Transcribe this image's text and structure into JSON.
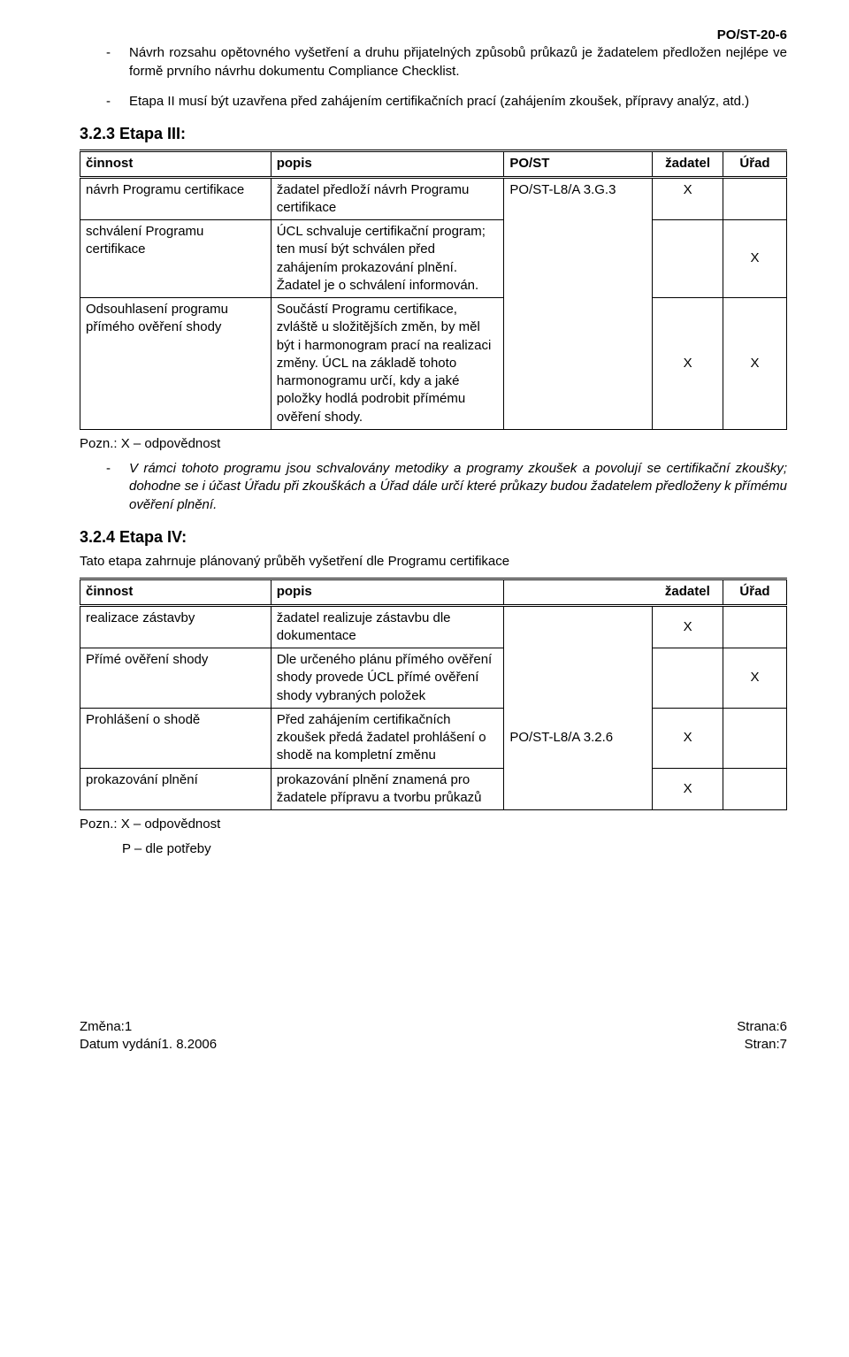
{
  "header": {
    "code": "PO/ST-20-6"
  },
  "bullets_top": [
    "Návrh rozsahu opětovného vyšetření a druhu přijatelných způsobů průkazů je žadatelem předložen nejlépe ve formě prvního návrhu dokumentu Compliance Checklist.",
    "Etapa II musí být uzavřena před zahájením certifikačních prací (zahájením zkoušek, přípravy analýz, atd.)"
  ],
  "section3": {
    "heading": "3.2.3 Etapa III:",
    "table": {
      "headers": {
        "cinnost": "činnost",
        "popis": "popis",
        "post": "PO/ST",
        "zadatel": "žadatel",
        "urad": "Úřad"
      },
      "rows": [
        {
          "cinnost": "návrh Programu certifikace",
          "popis": "žadatel předloží návrh Programu certifikace",
          "post": "PO/ST-L8/A 3.G.3",
          "zadatel": "X",
          "urad": ""
        },
        {
          "cinnost": "schválení Programu certifikace",
          "popis": "ÚCL schvaluje certifikační program; ten musí být schválen před zahájením prokazování plnění. Žadatel je o schválení informován.",
          "post": "",
          "zadatel": "",
          "urad": "X"
        },
        {
          "cinnost": "Odsouhlasení programu přímého ověření shody",
          "popis": "Součástí Programu certifikace, zvláště u složitějších změn, by měl být i harmonogram prací na realizaci změny. ÚCL na základě tohoto harmonogramu určí, kdy a jaké položky hodlá podrobit přímému ověření shody.",
          "post": "",
          "zadatel": "X",
          "urad": "X"
        }
      ]
    },
    "note": "Pozn.: X – odpovědnost",
    "bullet_after": "V rámci tohoto programu jsou schvalovány metodiky a programy zkoušek a povolují se certifikační zkoušky; dohodne se i účast Úřadu při zkouškách a Úřad dále určí které průkazy budou žadatelem předloženy k přímému ověření plnění."
  },
  "section4": {
    "heading": "3.2.4 Etapa IV:",
    "sub": "Tato etapa zahrnuje plánovaný průběh vyšetření dle Programu certifikace",
    "table": {
      "headers": {
        "cinnost": "činnost",
        "popis": "popis",
        "zadatel": "žadatel",
        "urad": "Úřad"
      },
      "rows": [
        {
          "cinnost": "realizace zástavby",
          "popis": "žadatel realizuje zástavbu dle dokumentace",
          "post": "",
          "zadatel": "X",
          "urad": ""
        },
        {
          "cinnost": "Přímé ověření shody",
          "popis": "Dle určeného plánu přímého ověření shody provede ÚCL přímé ověření shody vybraných položek",
          "post": "",
          "zadatel": "",
          "urad": "X"
        },
        {
          "cinnost": "Prohlášení o shodě",
          "popis": "Před zahájením certifikačních zkoušek předá žadatel prohlášení o shodě na kompletní změnu",
          "post": "PO/ST-L8/A 3.2.6",
          "zadatel": "X",
          "urad": ""
        },
        {
          "cinnost": "prokazování plnění",
          "popis": "prokazování plnění znamená pro žadatele přípravu a tvorbu průkazů",
          "post": "",
          "zadatel": "X",
          "urad": ""
        }
      ]
    },
    "note1": "Pozn.: X – odpovědnost",
    "note2": "P – dle potřeby"
  },
  "footer": {
    "left1": "Změna:1",
    "left2": "Datum vydání1. 8.2006",
    "right1": "Strana:6",
    "right2": "Stran:7"
  },
  "dash": "-"
}
